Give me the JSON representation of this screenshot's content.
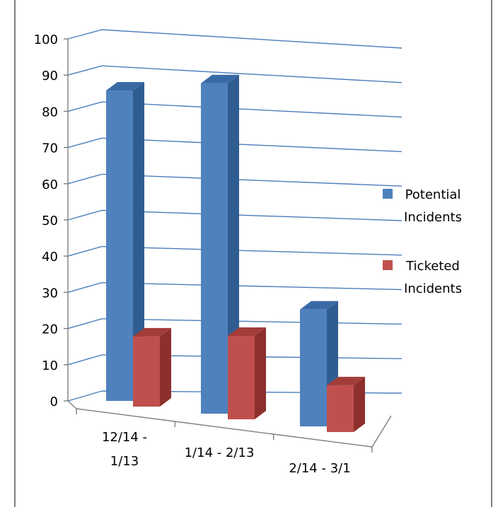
{
  "chart_data": {
    "type": "bar",
    "categories": [
      [
        "12/14 -",
        "1/13"
      ],
      [
        "1/14 - 2/13"
      ],
      [
        "2/14 - 3/1"
      ]
    ],
    "series": [
      {
        "name": "Potential Incidents",
        "name_lines": [
          "Potential",
          "Incidents"
        ],
        "values": [
          93,
          99,
          35
        ],
        "color": "#4f81bd",
        "side_color": "#2f5d92",
        "top_color": "#3a6aa6"
      },
      {
        "name": "Ticketed Incidents",
        "name_lines": [
          "Ticketed",
          "Incidents"
        ],
        "values": [
          21,
          25,
          14
        ],
        "color": "#c0504d",
        "side_color": "#8c302d",
        "top_color": "#a23d3a"
      }
    ],
    "ylim": [
      0,
      100
    ],
    "yticks": [
      0,
      10,
      20,
      30,
      40,
      50,
      60,
      70,
      80,
      90,
      100
    ],
    "grid": true,
    "legend_position": "right",
    "view": "3d-perspective"
  }
}
